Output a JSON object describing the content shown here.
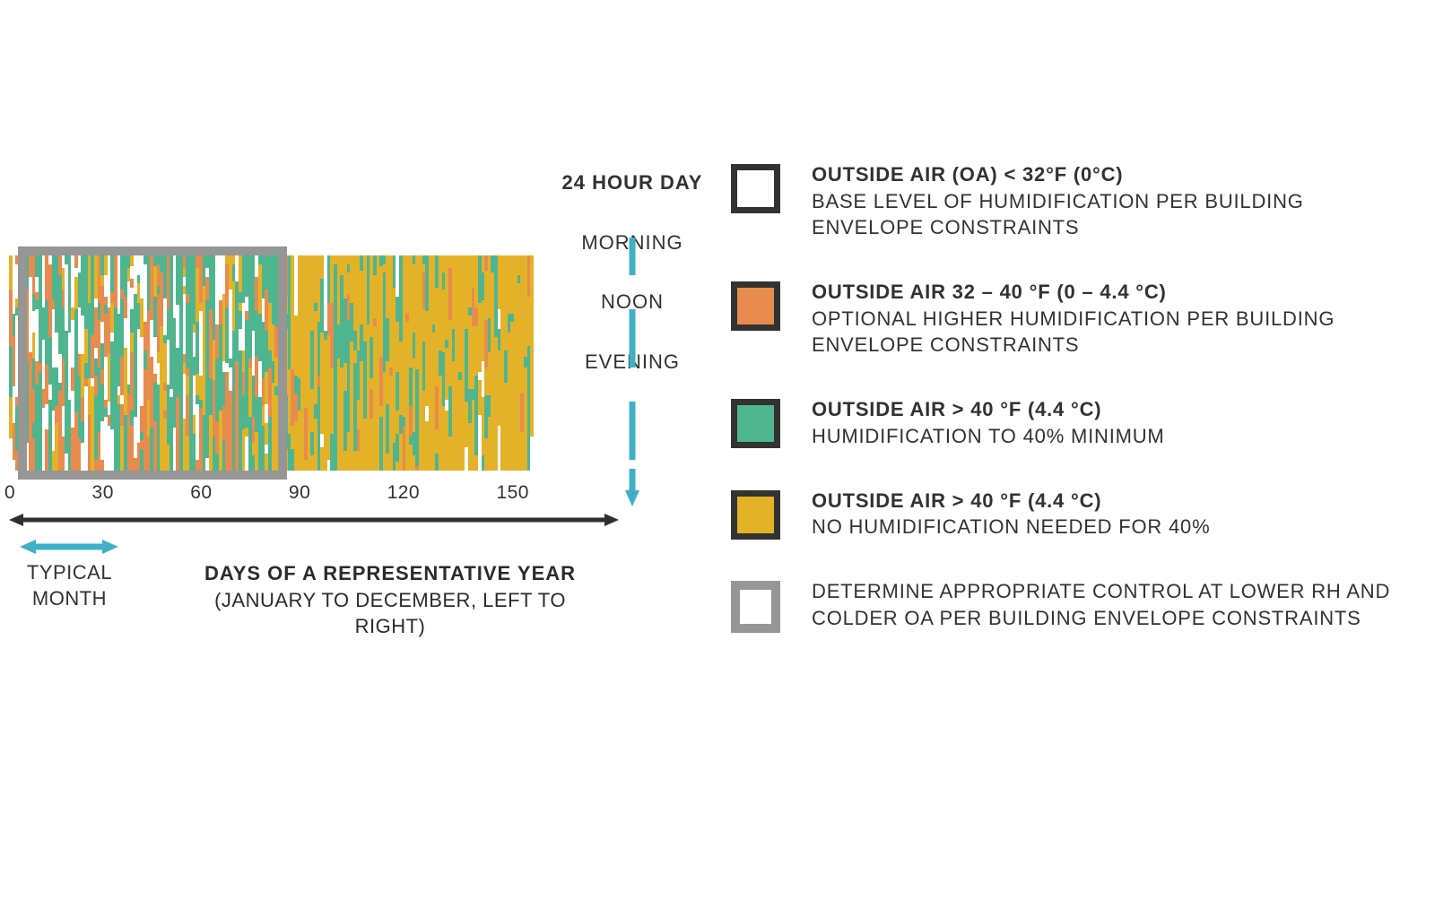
{
  "colors": {
    "white": "#ffffff",
    "orange": "#e88b4e",
    "green": "#4fb58f",
    "yellow": "#e4b228",
    "greyFrame": "#969696",
    "legendBorder": "#323232",
    "arrowTeal": "#3fb0c6",
    "arrowBlack": "#2f2f2f",
    "text": "#323232"
  },
  "heatmap": {
    "days": 160,
    "grey_frame_days": 80,
    "xlim": [
      0,
      160
    ],
    "xticks": [
      "0",
      "30",
      "60",
      "90",
      "120",
      "150"
    ]
  },
  "dayColumn": {
    "title": "24 HOUR DAY",
    "times": [
      "MORNING",
      "NOON",
      "EVENING"
    ]
  },
  "xaxis": {
    "monthLabel": "TYPICAL MONTH",
    "daysLabelBold": "DAYS OF A REPRESENTATIVE YEAR",
    "daysLabelSub": "(JANUARY TO DECEMBER, LEFT TO RIGHT)"
  },
  "legend": [
    {
      "fill": "#ffffff",
      "border": "#323232",
      "head": "OUTSIDE AIR (OA) < 32°F (0°C)",
      "sub": "BASE LEVEL OF HUMIDIFICATION PER BUILDING ENVELOPE CONSTRAINTS"
    },
    {
      "fill": "#e88b4e",
      "border": "#323232",
      "head": "OUTSIDE AIR 32 – 40 °F (0 – 4.4 °C)",
      "sub": "OPTIONAL HIGHER HUMIDIFICATION PER BUILDING ENVELOPE CONSTRAINTS"
    },
    {
      "fill": "#4fb58f",
      "border": "#323232",
      "head": "OUTSIDE AIR > 40 °F (4.4 °C)",
      "sub": "HUMIDIFICATION TO 40% MINIMUM"
    },
    {
      "fill": "#e4b228",
      "border": "#323232",
      "head": "OUTSIDE AIR > 40 °F (4.4 °C)",
      "sub": "NO HUMIDIFICATION NEEDED FOR 40%"
    },
    {
      "fill": "#ffffff",
      "border": "#969696",
      "grey": true,
      "head": "",
      "sub": "DETERMINE APPROPRIATE CONTROL AT LOWER RH AND COLDER OA PER BUILDING ENVELOPE CONSTRAINTS"
    }
  ]
}
